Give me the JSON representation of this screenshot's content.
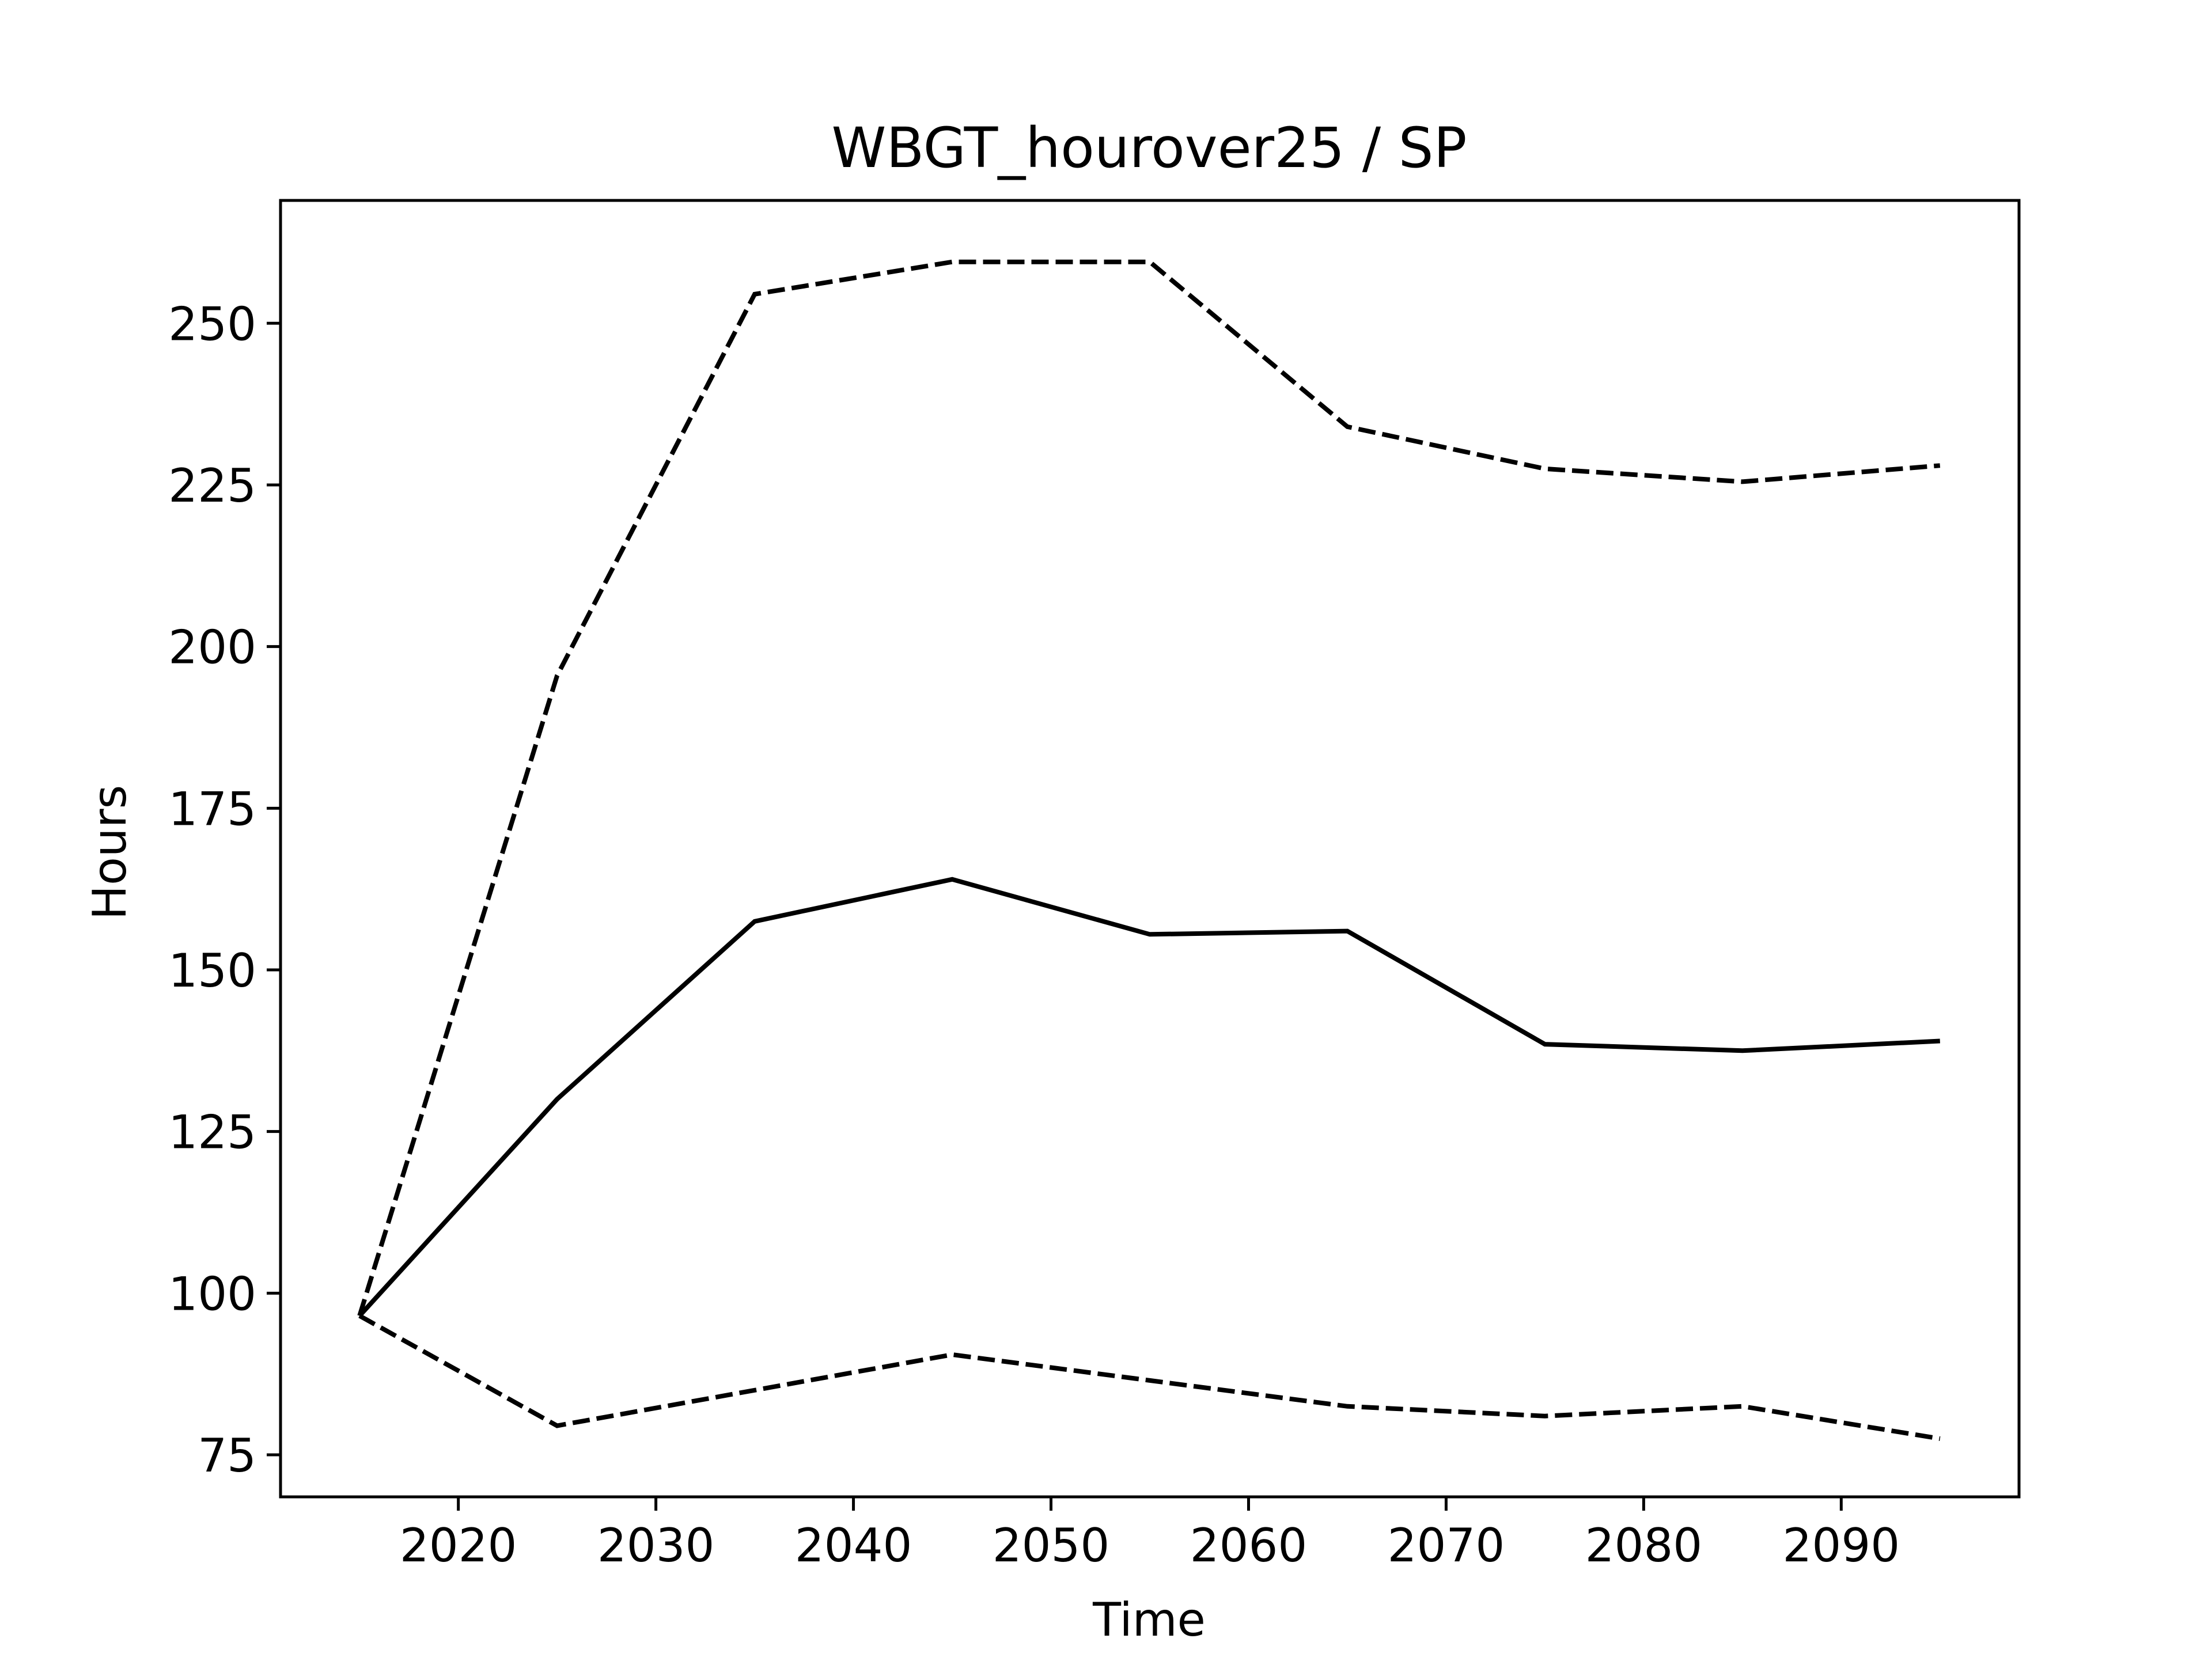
{
  "chart_data": {
    "type": "line",
    "title": "WBGT_hourover25 / SP",
    "xlabel": "Time",
    "ylabel": "Hours",
    "xlim": [
      2011,
      2099
    ],
    "ylim": [
      68.5,
      269
    ],
    "xticks": [
      2020,
      2030,
      2040,
      2050,
      2060,
      2070,
      2080,
      2090
    ],
    "yticks": [
      75,
      100,
      125,
      150,
      175,
      200,
      225,
      250
    ],
    "grid": false,
    "legend": "none",
    "x": [
      2015,
      2025,
      2035,
      2045,
      2055,
      2065,
      2075,
      2085,
      2095
    ],
    "series": [
      {
        "style": "dashed",
        "color": "#000000",
        "values": [
          96.5,
          195.5,
          254.5,
          259.5,
          259.5,
          234,
          227.5,
          225.5,
          228
        ]
      },
      {
        "style": "solid",
        "color": "#000000",
        "values": [
          96.5,
          130,
          157.5,
          164,
          155.5,
          156,
          138.5,
          137.5,
          139
        ]
      },
      {
        "style": "dashed",
        "color": "#000000",
        "values": [
          96.5,
          79.5,
          85,
          90.5,
          86.5,
          82.5,
          81,
          82.5,
          77.5
        ]
      }
    ]
  }
}
